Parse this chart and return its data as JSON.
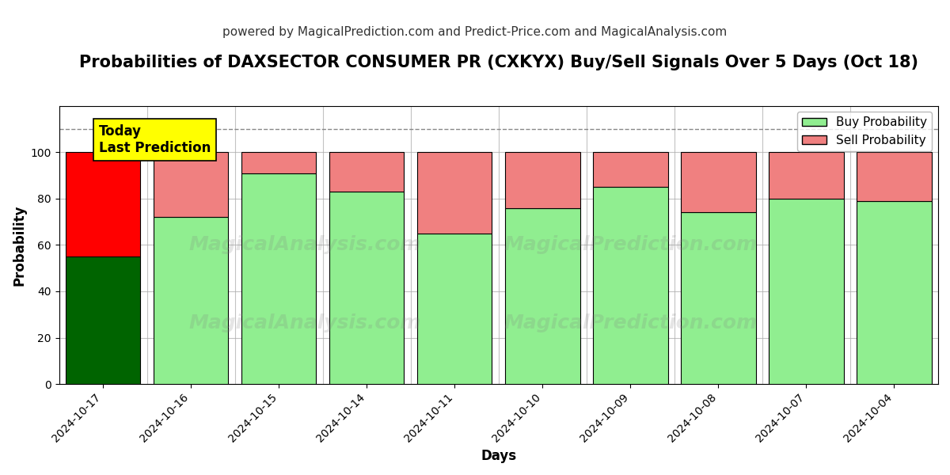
{
  "title": "Probabilities of DAXSECTOR CONSUMER PR (CXKYX) Buy/Sell Signals Over 5 Days (Oct 18)",
  "subtitle": "powered by MagicalPrediction.com and Predict-Price.com and MagicalAnalysis.com",
  "xlabel": "Days",
  "ylabel": "Probability",
  "dates": [
    "2024-10-17",
    "2024-10-16",
    "2024-10-15",
    "2024-10-14",
    "2024-10-11",
    "2024-10-10",
    "2024-10-09",
    "2024-10-08",
    "2024-10-07",
    "2024-10-04"
  ],
  "buy_values": [
    55,
    72,
    91,
    83,
    65,
    76,
    85,
    74,
    80,
    79
  ],
  "sell_values": [
    45,
    28,
    9,
    17,
    35,
    24,
    15,
    26,
    20,
    21
  ],
  "today_bar_buy_color": "#006400",
  "today_bar_sell_color": "#FF0000",
  "regular_bar_buy_color": "#90EE90",
  "regular_bar_sell_color": "#F08080",
  "today_annotation_bg": "#FFFF00",
  "today_annotation_text": "Today\nLast Prediction",
  "dashed_line_y": 110,
  "ylim": [
    0,
    120
  ],
  "yticks": [
    0,
    20,
    40,
    60,
    80,
    100
  ],
  "bar_width": 0.85,
  "bar_edge_color": "#000000",
  "bar_edge_width": 0.8,
  "grid_color": "#AAAAAA",
  "grid_alpha": 0.7,
  "watermark_text1": "MagicalAnalysis.com",
  "watermark_text2": "MagicalPrediction.com",
  "background_color": "#FFFFFF",
  "title_fontsize": 15,
  "subtitle_fontsize": 11,
  "label_fontsize": 12,
  "tick_fontsize": 10,
  "legend_fontsize": 11
}
